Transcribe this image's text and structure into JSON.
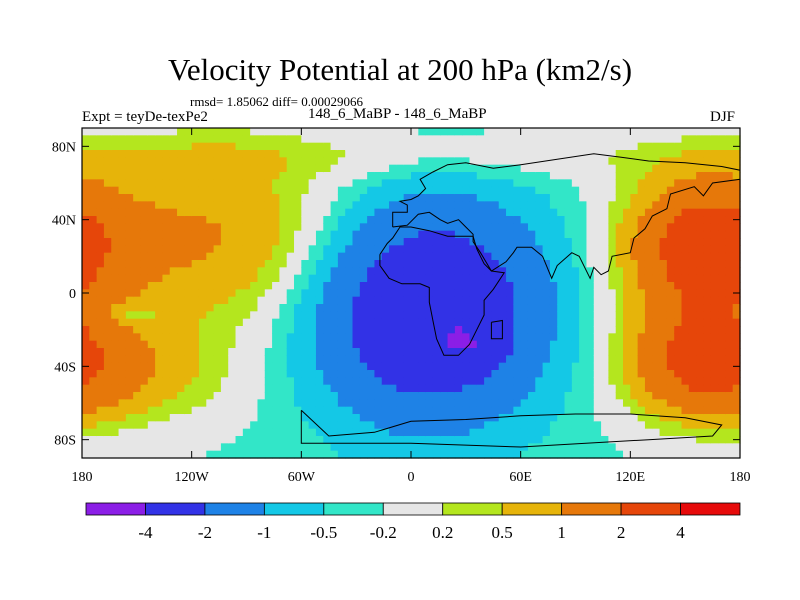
{
  "title": "Velocity Potential at 200 hPa (km2/s)",
  "stats": "rmsd= 1.85062 diff= 0.00029066",
  "left_label": "Expt = teyDe-texPe2",
  "center_label": "148_6_MaBP - 148_6_MaBP",
  "right_label": "DJF",
  "chart_data": {
    "type": "heatmap",
    "title": "Velocity Potential at 200 hPa (km2/s)",
    "subtitle": "rmsd= 1.85062 diff= 0.00029066",
    "xlabel": "",
    "ylabel": "",
    "x_range": [
      -180,
      180
    ],
    "y_range": [
      -90,
      90
    ],
    "x_ticks": [
      -180,
      -120,
      -60,
      0,
      60,
      120,
      180
    ],
    "x_tick_labels": [
      "180",
      "120W",
      "60W",
      "0",
      "60E",
      "120E",
      "180"
    ],
    "y_ticks": [
      80,
      40,
      0,
      -40,
      -80
    ],
    "y_tick_labels": [
      "80N",
      "40N",
      "0",
      "40S",
      "80S"
    ],
    "levels": [
      -4,
      -2,
      -1,
      -0.5,
      -0.2,
      0.2,
      0.5,
      1,
      2,
      4
    ],
    "level_labels": [
      "-4",
      "-2",
      "-1",
      "-0.5",
      "-0.2",
      "0.2",
      "0.5",
      "1",
      "2",
      "4"
    ],
    "colors": [
      "#8b1ee6",
      "#3232e6",
      "#1e82e6",
      "#14c8e6",
      "#32e6c8",
      "#e6e6e6",
      "#b4e61e",
      "#e6b40a",
      "#e6780a",
      "#e6460a",
      "#e60a0a"
    ],
    "field_description": "DJF 200 hPa velocity potential difference; negative centre near 30E 25S (about -4), positive maxima over the central Pacific (about 2 to 3)"
  },
  "colors": {
    "background": "#ffffff",
    "frame": "#000000",
    "coastline": "#000000"
  }
}
